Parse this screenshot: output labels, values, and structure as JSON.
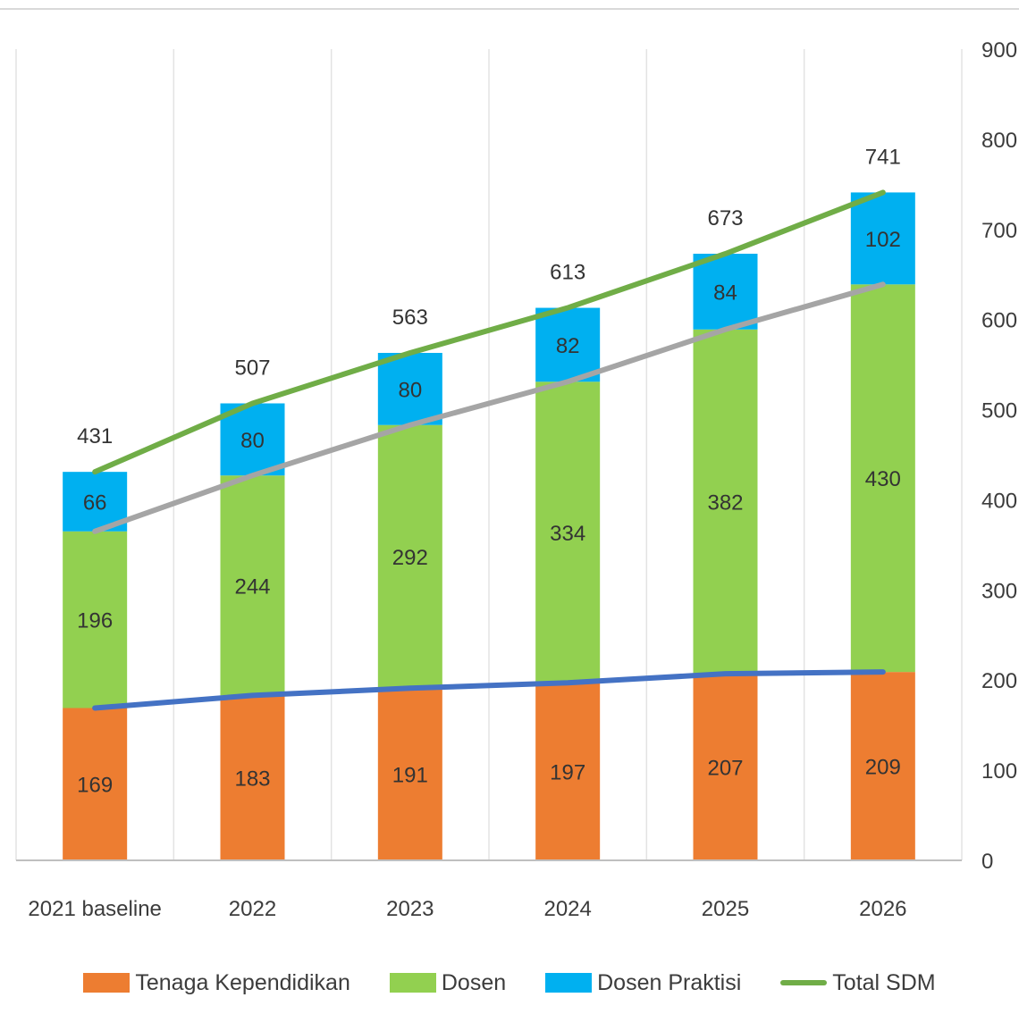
{
  "chart_data": {
    "type": "bar",
    "stacked": true,
    "categories": [
      "2021 baseline",
      "2022",
      "2023",
      "2024",
      "2025",
      "2026"
    ],
    "series": [
      {
        "name": "Tenaga Kependidikan",
        "type": "bar",
        "color": "#ED7D31",
        "values": [
          169,
          183,
          191,
          197,
          207,
          209
        ]
      },
      {
        "name": "Dosen",
        "type": "bar",
        "color": "#92D050",
        "values": [
          196,
          244,
          292,
          334,
          382,
          430
        ]
      },
      {
        "name": "Dosen Praktisi",
        "type": "bar",
        "color": "#00B0F0",
        "values": [
          66,
          80,
          80,
          82,
          84,
          102
        ]
      },
      {
        "name": "Total SDM",
        "type": "line",
        "color": "#70AD47",
        "values": [
          431,
          507,
          563,
          613,
          673,
          741
        ]
      }
    ],
    "trend_lines": [
      {
        "color": "#4472C4",
        "values": [
          169,
          183,
          191,
          197,
          207,
          209
        ]
      },
      {
        "color": "#A5A5A5",
        "values": [
          365,
          427,
          483,
          531,
          589,
          639
        ]
      }
    ],
    "total_labels": [
      "431",
      "507",
      "563",
      "613",
      "673",
      "741"
    ],
    "y_axis": {
      "position": "right",
      "min": 0,
      "max": 900,
      "step": 100,
      "ticks": [
        "0",
        "100",
        "200",
        "300",
        "400",
        "500",
        "600",
        "700",
        "800",
        "900"
      ]
    },
    "grid": {
      "vertical": true,
      "horizontal": false
    },
    "legend_position": "bottom"
  },
  "legend": {
    "item1": "Tenaga Kependidikan",
    "item2": "Dosen",
    "item3": "Dosen Praktisi",
    "item4": "Total SDM"
  }
}
